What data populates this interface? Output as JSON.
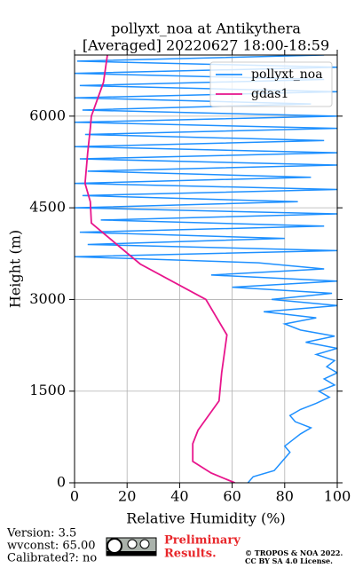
{
  "chart_data": {
    "type": "profile",
    "title": "pollyxt_noa at Antikythera",
    "subtitle": "[Averaged] 20220627 18:00-18:59",
    "x_label": "Relative Humidity (%)",
    "y_label": "Height (m)",
    "xlim": [
      0,
      100
    ],
    "xticks": [
      0,
      20,
      40,
      60,
      80,
      100
    ],
    "ylim": [
      0,
      7000
    ],
    "yticks": [
      0,
      1500,
      3000,
      4500,
      6000
    ],
    "grid": true,
    "legend": "upper right",
    "series": [
      {
        "name": "pollyxt_noa",
        "color": "#1e90ff",
        "heights": [
          0,
          100,
          200,
          300,
          400,
          500,
          600,
          700,
          800,
          900,
          1000,
          1100,
          1200,
          1300,
          1400,
          1500,
          1600,
          1700,
          1800,
          1900,
          2000,
          2100,
          2200,
          2300,
          2400,
          2500,
          2600,
          2700,
          2800,
          2900,
          3000,
          3100,
          3200,
          3300,
          3400,
          3500,
          3600,
          3700,
          3800,
          3900,
          4000,
          4100,
          4200,
          4300,
          4400,
          4500,
          4600,
          4700,
          4800,
          4900,
          5000,
          5100,
          5200,
          5300,
          5400,
          5500,
          5600,
          5700,
          5800,
          5900,
          6000,
          6100,
          6200,
          6300,
          6400,
          6500,
          6600,
          6700,
          6800,
          6900,
          7000
        ],
        "values": [
          66,
          68,
          76,
          78,
          80,
          82,
          80,
          83,
          86,
          90,
          84,
          82,
          86,
          92,
          97,
          93,
          99,
          95,
          100,
          96,
          99,
          92,
          100,
          88,
          99,
          86,
          80,
          92,
          72,
          100,
          75,
          98,
          60,
          100,
          52,
          95,
          70,
          0,
          100,
          5,
          80,
          2,
          95,
          10,
          100,
          0,
          85,
          3,
          100,
          0,
          90,
          5,
          100,
          2,
          100,
          0,
          95,
          4,
          100,
          0,
          100,
          3,
          90,
          0,
          100,
          2,
          95,
          0,
          100,
          1,
          95
        ]
      },
      {
        "name": "gdas1",
        "color": "#e8158c",
        "heights": [
          0,
          160,
          350,
          640,
          860,
          1340,
          1800,
          2420,
          3000,
          3580,
          4250,
          4600,
          4900,
          5400,
          5800,
          6000,
          6550,
          7000
        ],
        "values": [
          61,
          52,
          45,
          45,
          47,
          55,
          56,
          58,
          50,
          25,
          6.4,
          6,
          4,
          5,
          6,
          6.4,
          11,
          12.5
        ]
      }
    ],
    "footer": {
      "version": "Version: 3.5",
      "wvconst": "wvconst:  65.00",
      "calibrated": "Calibrated?: no",
      "preliminary": "Preliminary",
      "results": "Results.",
      "copyright": "© TROPOS & NOA 2022.",
      "license": "CC BY SA 4.0 License."
    }
  }
}
